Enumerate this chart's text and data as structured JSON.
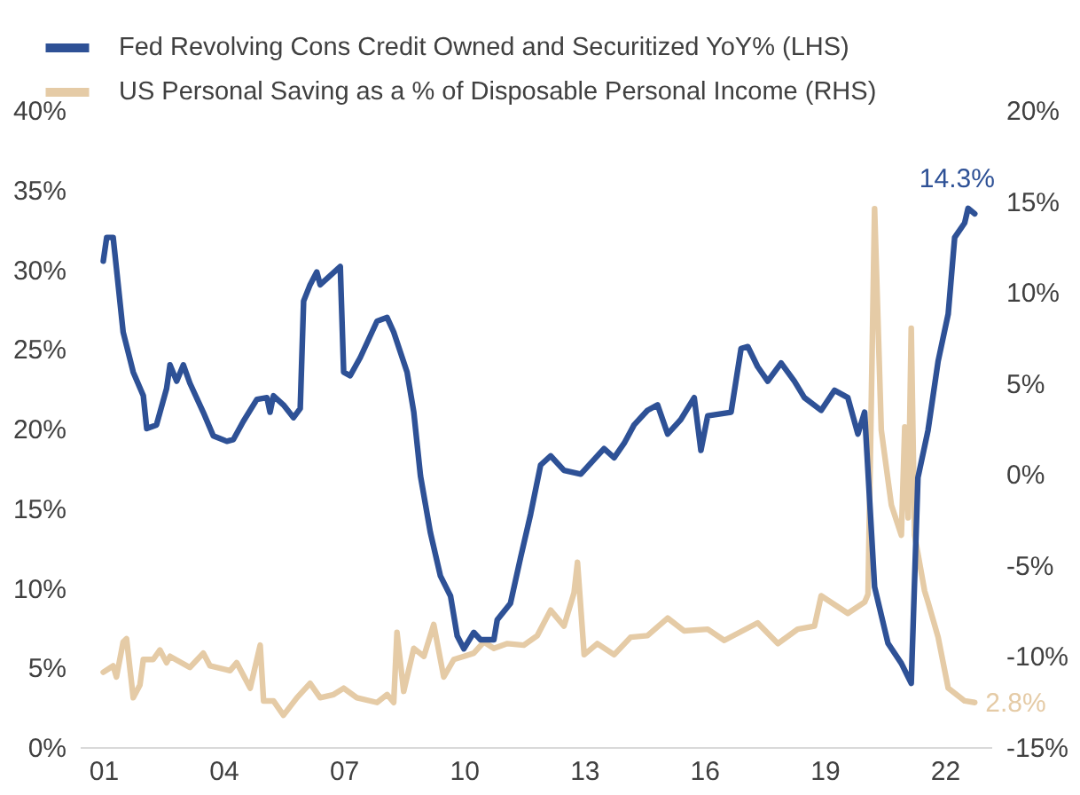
{
  "chart_data": {
    "type": "line",
    "legend": "top left",
    "grid": false,
    "xlim": [
      "2000-06",
      "2023-03"
    ],
    "xticks": [
      {
        "value": "2001",
        "label": "01"
      },
      {
        "value": "2004",
        "label": "04"
      },
      {
        "value": "2007",
        "label": "07"
      },
      {
        "value": "2010",
        "label": "10"
      },
      {
        "value": "2013",
        "label": "13"
      },
      {
        "value": "2016",
        "label": "16"
      },
      {
        "value": "2019",
        "label": "19"
      },
      {
        "value": "2022",
        "label": "22"
      }
    ],
    "ylim": [
      0,
      40
    ],
    "yticks": [
      {
        "value": 0,
        "label": "0%"
      },
      {
        "value": 5,
        "label": "5%"
      },
      {
        "value": 10,
        "label": "10%"
      },
      {
        "value": 15,
        "label": "15%"
      },
      {
        "value": 20,
        "label": "20%"
      },
      {
        "value": 25,
        "label": "25%"
      },
      {
        "value": 30,
        "label": "30%"
      },
      {
        "value": 35,
        "label": "35%"
      },
      {
        "value": 40,
        "label": "40%"
      }
    ],
    "y2lim": [
      -15,
      20
    ],
    "y2ticks": [
      {
        "value": -15,
        "label": "-15%"
      },
      {
        "value": -10,
        "label": "-10%"
      },
      {
        "value": -5,
        "label": "-5%"
      },
      {
        "value": 0,
        "label": "0%"
      },
      {
        "value": 5,
        "label": "5%"
      },
      {
        "value": 10,
        "label": "10%"
      },
      {
        "value": 15,
        "label": "15%"
      },
      {
        "value": 20,
        "label": "20%"
      }
    ],
    "series": [
      {
        "name": "Fed Revolving Cons Credit Owned and Securitized YoY% (LHS)",
        "color": "#2e5196",
        "axis": "y2",
        "x": [
          "2001-01",
          "2001-02",
          "2001-04",
          "2001-05",
          "2001-07",
          "2001-10",
          "2002-01",
          "2002-02",
          "2002-05",
          "2002-08",
          "2002-09",
          "2002-11",
          "2003-01",
          "2003-03",
          "2003-07",
          "2003-10",
          "2004-02",
          "2004-04",
          "2004-07",
          "2004-11",
          "2005-02",
          "2005-03",
          "2005-04",
          "2005-07",
          "2005-10",
          "2005-12",
          "2006-01",
          "2006-03",
          "2006-05",
          "2006-06",
          "2006-12",
          "2007-01",
          "2007-03",
          "2007-06",
          "2007-11",
          "2008-02",
          "2008-04",
          "2008-08",
          "2008-10",
          "2008-12",
          "2009-03",
          "2009-06",
          "2009-09",
          "2009-11",
          "2010-01",
          "2010-04",
          "2010-06",
          "2010-10",
          "2010-11",
          "2011-03",
          "2011-06",
          "2011-09",
          "2011-12",
          "2012-03",
          "2012-07",
          "2012-12",
          "2013-07",
          "2013-10",
          "2014-01",
          "2014-04",
          "2014-08",
          "2014-11",
          "2015-02",
          "2015-06",
          "2015-10",
          "2015-12",
          "2016-02",
          "2016-09",
          "2016-12",
          "2017-02",
          "2017-05",
          "2017-08",
          "2017-12",
          "2018-04",
          "2018-07",
          "2018-12",
          "2019-04",
          "2019-08",
          "2019-11",
          "2020-01",
          "2020-04",
          "2020-08",
          "2020-12",
          "2021-03",
          "2021-05",
          "2021-08",
          "2021-11",
          "2022-02",
          "2022-04",
          "2022-07",
          "2022-08",
          "2022-10"
        ],
        "values": [
          11.7,
          13,
          13,
          11.3,
          7.8,
          5.6,
          4.3,
          2.5,
          2.7,
          4.7,
          6,
          5.1,
          6,
          5,
          3.4,
          2.1,
          1.8,
          1.9,
          2.9,
          4.1,
          4.2,
          3.4,
          4.3,
          3.8,
          3.1,
          3.6,
          9.5,
          10.4,
          11.1,
          10.4,
          11.4,
          5.6,
          5.4,
          6.4,
          8.4,
          8.6,
          7.8,
          5.6,
          3.4,
          -0.1,
          -3.2,
          -5.6,
          -6.7,
          -8.9,
          -9.6,
          -8.7,
          -9.1,
          -9.1,
          -8,
          -7.1,
          -4.6,
          -2.2,
          0.5,
          1,
          0.2,
          0,
          1.4,
          0.9,
          1.7,
          2.7,
          3.5,
          3.8,
          2.2,
          3,
          4.2,
          1.3,
          3.2,
          3.4,
          6.9,
          7,
          5.9,
          5.1,
          6.1,
          5.1,
          4.2,
          3.5,
          4.6,
          4.2,
          2.2,
          3.4,
          -6.2,
          -9.3,
          -10.4,
          -11.5,
          -0.2,
          2.4,
          6.2,
          8.8,
          13,
          13.8,
          14.6,
          14.3
        ],
        "value_labels": [
          null,
          null,
          null,
          null,
          null,
          null,
          null,
          null,
          null,
          null,
          null,
          null,
          null,
          null,
          null,
          null,
          null,
          null,
          null,
          null,
          null,
          null,
          null,
          null,
          null,
          null,
          null,
          null,
          null,
          null,
          null,
          null,
          null,
          null,
          null,
          null,
          null,
          null,
          null,
          null,
          null,
          null,
          null,
          null,
          null,
          null,
          null,
          null,
          null,
          null,
          null,
          null,
          null,
          null,
          null,
          null,
          null,
          null,
          null,
          null,
          null,
          null,
          null,
          null,
          null,
          null,
          null,
          null,
          null,
          null,
          null,
          null,
          null,
          null,
          null,
          null,
          null,
          null,
          null,
          null,
          null,
          null,
          null,
          null,
          null,
          null,
          null,
          null,
          null,
          null,
          null,
          "14.3%"
        ]
      },
      {
        "name": "US Personal Saving as a % of Disposable Personal Income (RHS)",
        "color": "#e5cba6",
        "x": [
          "2001-01",
          "2001-04",
          "2001-05",
          "2001-07",
          "2001-08",
          "2001-10",
          "2001-12",
          "2002-01",
          "2002-04",
          "2002-06",
          "2002-08",
          "2002-09",
          "2003-03",
          "2003-07",
          "2003-09",
          "2004-03",
          "2004-05",
          "2004-09",
          "2004-12",
          "2005-01",
          "2005-04",
          "2005-07",
          "2005-11",
          "2006-03",
          "2006-06",
          "2006-10",
          "2007-01",
          "2007-05",
          "2007-11",
          "2008-02",
          "2008-04",
          "2008-05",
          "2008-07",
          "2008-10",
          "2009-01",
          "2009-04",
          "2009-07",
          "2009-10",
          "2010-01",
          "2010-04",
          "2010-07",
          "2010-10",
          "2011-02",
          "2011-07",
          "2011-11",
          "2012-03",
          "2012-07",
          "2012-10",
          "2012-11",
          "2013-01",
          "2013-05",
          "2013-10",
          "2014-03",
          "2014-08",
          "2015-02",
          "2015-07",
          "2016-02",
          "2016-07",
          "2017-05",
          "2017-11",
          "2018-05",
          "2018-10",
          "2018-12",
          "2019-08",
          "2020-01",
          "2020-02",
          "2020-04",
          "2020-06",
          "2020-09",
          "2020-12",
          "2021-01",
          "2021-02",
          "2021-03",
          "2021-04",
          "2021-07",
          "2021-08",
          "2021-11",
          "2022-02",
          "2022-07",
          "2022-10"
        ],
        "values": [
          4.7,
          5.1,
          4.4,
          6.6,
          6.8,
          3.1,
          3.9,
          5.5,
          5.5,
          6.1,
          5.3,
          5.7,
          5,
          5.9,
          5.1,
          4.8,
          5.3,
          3.7,
          6.4,
          2.9,
          2.9,
          2,
          3.1,
          4,
          3.1,
          3.3,
          3.7,
          3.1,
          2.8,
          3.3,
          2.8,
          7.2,
          3.5,
          6.2,
          5.7,
          7.7,
          4.4,
          5.5,
          5.7,
          5.9,
          6.6,
          6.2,
          6.5,
          6.4,
          7,
          8.6,
          7.6,
          9.7,
          11.6,
          5.8,
          6.5,
          5.8,
          6.9,
          7,
          8.1,
          7.3,
          7.4,
          6.7,
          7.8,
          6.5,
          7.4,
          7.6,
          9.5,
          8.4,
          9.1,
          9.6,
          33.8,
          19.9,
          15.2,
          13.3,
          20.1,
          14.4,
          26.3,
          13.3,
          9.8,
          9.1,
          6.9,
          3.7,
          2.9,
          2.8
        ],
        "value_labels": [
          null,
          null,
          null,
          null,
          null,
          null,
          null,
          null,
          null,
          null,
          null,
          null,
          null,
          null,
          null,
          null,
          null,
          null,
          null,
          null,
          null,
          null,
          null,
          null,
          null,
          null,
          null,
          null,
          null,
          null,
          null,
          null,
          null,
          null,
          null,
          null,
          null,
          null,
          null,
          null,
          null,
          null,
          null,
          null,
          null,
          null,
          null,
          null,
          null,
          null,
          null,
          null,
          null,
          null,
          null,
          null,
          null,
          null,
          null,
          null,
          null,
          null,
          null,
          null,
          null,
          null,
          null,
          null,
          null,
          null,
          null,
          null,
          null,
          null,
          null,
          null,
          null,
          null,
          null,
          "2.8%"
        ]
      }
    ]
  }
}
